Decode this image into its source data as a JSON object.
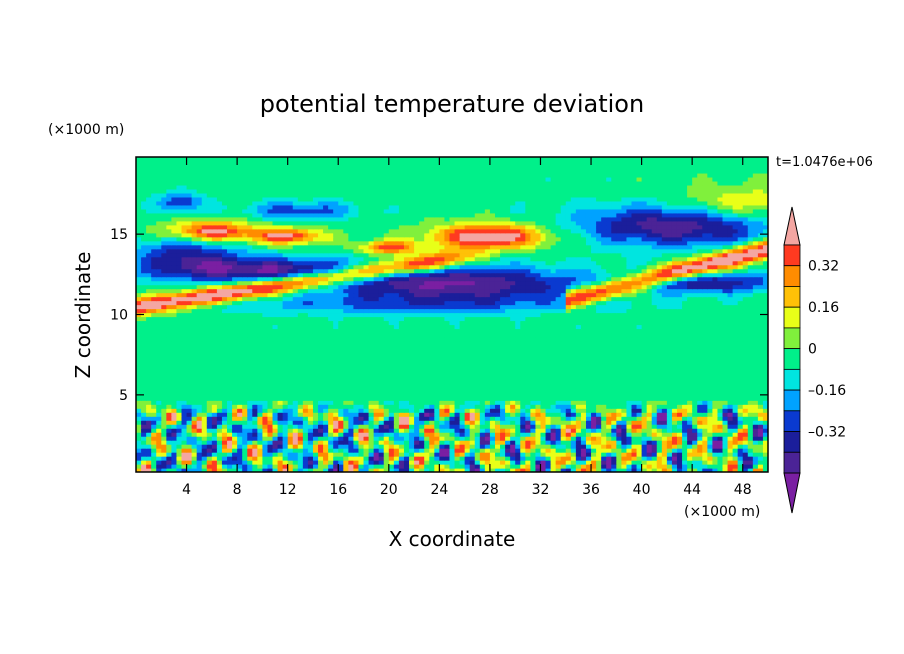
{
  "chart_data": {
    "type": "heatmap",
    "title": "potential temperature deviation",
    "xlabel": "X coordinate",
    "ylabel": "Z coordinate",
    "x_unit": "(×1000 m)",
    "y_unit": "(×1000 m)",
    "time_label": "t=1.0476e+06",
    "xlim": [
      0,
      50
    ],
    "ylim": [
      0.2,
      19.8
    ],
    "x_ticks": [
      4,
      8,
      12,
      16,
      20,
      24,
      28,
      32,
      36,
      40,
      44,
      48
    ],
    "y_ticks": [
      5,
      10,
      15
    ],
    "colorbar": {
      "levels": [
        -0.48,
        -0.4,
        -0.32,
        -0.24,
        -0.16,
        -0.08,
        0,
        0.08,
        0.16,
        0.24,
        0.32,
        0.4,
        0.48
      ],
      "tick_labels": [
        "0.32",
        "0.16",
        "0",
        "–0.16",
        "–0.32"
      ],
      "tick_values": [
        0.32,
        0.16,
        0,
        -0.16,
        -0.32
      ],
      "colors": [
        "#7a1fa2",
        "#4b2396",
        "#1b1e9b",
        "#0a3ad0",
        "#00a2ff",
        "#00e5e0",
        "#00f08a",
        "#80f03c",
        "#e8ff18",
        "#ffc107",
        "#ff8c00",
        "#ff3a20",
        "#f4a6a2"
      ]
    },
    "features": [
      {
        "type": "warm_band",
        "x": [
          0.5,
          28
        ],
        "z": [
          10.2,
          13.2
        ],
        "value": 0.48
      },
      {
        "type": "warm_band",
        "x": [
          36,
          50
        ],
        "z": [
          11.0,
          14.6
        ],
        "value": 0.48
      },
      {
        "type": "warm_band",
        "x": [
          22,
          33
        ],
        "z": [
          14.0,
          15.6
        ],
        "value": 0.48
      },
      {
        "type": "cold_band",
        "x": [
          15,
          35
        ],
        "z": [
          10.8,
          14.0
        ],
        "value": -0.4
      },
      {
        "type": "cold_band",
        "x": [
          35,
          50
        ],
        "z": [
          14.0,
          17.0
        ],
        "value": -0.4
      },
      {
        "type": "turbulent_layer",
        "x": [
          0,
          50
        ],
        "z": [
          0.2,
          4.5
        ],
        "amplitude": 0.4
      }
    ]
  }
}
